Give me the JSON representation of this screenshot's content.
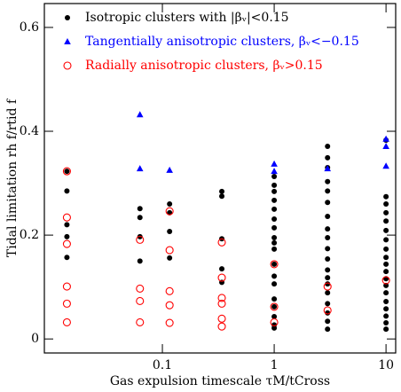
{
  "chart_data": {
    "type": "scatter",
    "xlabel": "Gas expulsion timescale τM/tCross",
    "ylabel": "Tidal limitation rh f/rtid f",
    "xscale": "log",
    "xlim": [
      0.0088,
      12.2
    ],
    "ylim": [
      -0.027,
      0.646
    ],
    "xticks": [
      0.1,
      1,
      10
    ],
    "yticks": [
      0,
      0.2,
      0.4,
      0.6
    ],
    "legend": "upper left",
    "series": [
      {
        "name": "Isotropic clusters with |βᵥ|<0.15",
        "color": "#000000",
        "marker": "filled-circle",
        "x": [
          0.014,
          0.014,
          0.014,
          0.014,
          0.014,
          0.063,
          0.063,
          0.063,
          0.063,
          0.116,
          0.116,
          0.116,
          0.116,
          0.34,
          0.34,
          0.34,
          0.34,
          0.34,
          1,
          1,
          1,
          1,
          1,
          1,
          1,
          1,
          1,
          1,
          1,
          1,
          1,
          1,
          1,
          1,
          1,
          1,
          3,
          3,
          3,
          3,
          3,
          3,
          3,
          3,
          3,
          3,
          3,
          3,
          3,
          3,
          3,
          3,
          3,
          3,
          3,
          10,
          10,
          10,
          10,
          10,
          10,
          10,
          10,
          10,
          10,
          10,
          10,
          10,
          10,
          10,
          10,
          10,
          10,
          10
        ],
        "y": [
          0.323,
          0.285,
          0.22,
          0.197,
          0.157,
          0.251,
          0.234,
          0.197,
          0.15,
          0.26,
          0.243,
          0.207,
          0.156,
          0.284,
          0.275,
          0.193,
          0.135,
          0.109,
          0.313,
          0.296,
          0.284,
          0.267,
          0.25,
          0.231,
          0.214,
          0.195,
          0.185,
          0.173,
          0.144,
          0.121,
          0.106,
          0.077,
          0.062,
          0.043,
          0.027,
          0.021,
          0.371,
          0.349,
          0.33,
          0.303,
          0.285,
          0.263,
          0.236,
          0.212,
          0.195,
          0.174,
          0.154,
          0.133,
          0.118,
          0.106,
          0.089,
          0.068,
          0.05,
          0.034,
          0.019,
          0.383,
          0.274,
          0.26,
          0.243,
          0.227,
          0.209,
          0.191,
          0.173,
          0.157,
          0.144,
          0.13,
          0.116,
          0.103,
          0.089,
          0.072,
          0.058,
          0.044,
          0.031,
          0.019
        ]
      },
      {
        "name": "Tangentially anisotropic clusters, βᵥ<−0.15",
        "color": "#0000ff",
        "marker": "filled-triangle",
        "x": [
          0.063,
          0.063,
          0.116,
          1,
          1,
          3,
          10,
          10,
          10
        ],
        "y": [
          0.432,
          0.328,
          0.325,
          0.337,
          0.323,
          0.328,
          0.385,
          0.371,
          0.333
        ]
      },
      {
        "name": "Radially anisotropic clusters, βᵥ>0.15",
        "color": "#ff0000",
        "marker": "open-circle",
        "x": [
          0.014,
          0.014,
          0.014,
          0.014,
          0.014,
          0.014,
          0.063,
          0.063,
          0.063,
          0.063,
          0.116,
          0.116,
          0.116,
          0.116,
          0.116,
          0.34,
          0.34,
          0.34,
          0.34,
          0.34,
          0.34,
          1,
          1,
          1,
          3,
          3,
          10
        ],
        "y": [
          0.323,
          0.234,
          0.183,
          0.101,
          0.068,
          0.032,
          0.191,
          0.097,
          0.073,
          0.032,
          0.246,
          0.171,
          0.092,
          0.065,
          0.031,
          0.186,
          0.118,
          0.079,
          0.068,
          0.039,
          0.024,
          0.144,
          0.062,
          0.032,
          0.101,
          0.055,
          0.113
        ]
      }
    ]
  }
}
